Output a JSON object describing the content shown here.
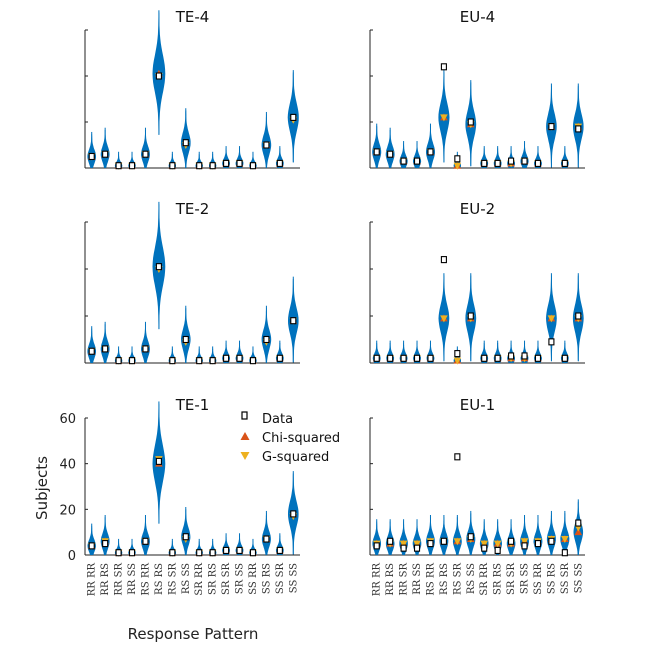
{
  "figure": {
    "xlabel": "Response Pattern",
    "ylabel": "Subjects",
    "legend": {
      "position": "top-left of TE-1 panel",
      "entries": [
        {
          "label": "Data",
          "marker": "square",
          "color": "#000000"
        },
        {
          "label": "Chi-squared",
          "marker": "triangle-up",
          "color": "#d95319"
        },
        {
          "label": "G-squared",
          "marker": "triangle-down",
          "color": "#edb120"
        }
      ]
    },
    "violin_color": "#0072bd"
  },
  "chart_data": [
    {
      "type": "violin",
      "title": "TE-4",
      "ylim": [
        0,
        60
      ],
      "yticks": [],
      "data": [
        5,
        6,
        1,
        1,
        6,
        40,
        1,
        11,
        1,
        1,
        2,
        2,
        1,
        10,
        2,
        22
      ],
      "chi": [
        5,
        6,
        1,
        1,
        6,
        41,
        1,
        11,
        1,
        1,
        2,
        2,
        1,
        10,
        2,
        22
      ],
      "g2": [
        5,
        6,
        1,
        1,
        6,
        40,
        1,
        10,
        1,
        1,
        2,
        2,
        1,
        10,
        2,
        21
      ]
    },
    {
      "type": "violin",
      "title": "EU-4",
      "ylim": [
        0,
        60
      ],
      "yticks": [],
      "data": [
        7,
        6,
        3,
        3,
        7,
        44,
        4,
        20,
        2,
        2,
        3,
        3,
        2,
        18,
        2,
        17
      ],
      "chi": [
        7,
        6,
        3,
        3,
        7,
        22,
        1,
        19,
        2,
        2,
        2,
        3,
        2,
        18,
        2,
        18
      ],
      "g2": [
        7,
        6,
        3,
        3,
        7,
        22,
        1,
        19,
        2,
        2,
        2,
        3,
        2,
        18,
        2,
        18
      ]
    },
    {
      "type": "violin",
      "title": "TE-2",
      "ylim": [
        0,
        60
      ],
      "yticks": [],
      "data": [
        5,
        6,
        1,
        1,
        6,
        41,
        1,
        10,
        1,
        1,
        2,
        2,
        1,
        10,
        2,
        18
      ],
      "chi": [
        5,
        6,
        1,
        1,
        6,
        41,
        1,
        10,
        1,
        1,
        2,
        2,
        1,
        10,
        2,
        18
      ],
      "g2": [
        5,
        6,
        1,
        1,
        6,
        40,
        1,
        9,
        1,
        1,
        2,
        2,
        1,
        9,
        2,
        18
      ]
    },
    {
      "type": "violin",
      "title": "EU-2",
      "ylim": [
        0,
        60
      ],
      "yticks": [],
      "data": [
        2,
        2,
        2,
        2,
        2,
        44,
        4,
        20,
        2,
        2,
        3,
        3,
        2,
        9,
        2,
        20
      ],
      "chi": [
        2,
        2,
        2,
        2,
        2,
        19,
        1,
        19,
        2,
        2,
        2,
        2,
        2,
        19,
        2,
        19
      ],
      "g2": [
        2,
        2,
        2,
        2,
        2,
        19,
        1,
        19,
        2,
        2,
        2,
        2,
        2,
        19,
        2,
        19
      ]
    },
    {
      "type": "violin",
      "title": "TE-1",
      "ylim": [
        0,
        60
      ],
      "yticks": [
        0,
        20,
        40,
        60
      ],
      "categories": [
        "RR RR",
        "RR RS",
        "RR SR",
        "RR SS",
        "RS RR",
        "RS RS",
        "RS SR",
        "RS SS",
        "SR RR",
        "SR RS",
        "SR SR",
        "SR SS",
        "SS RR",
        "SS RS",
        "SS SR",
        "SS SS"
      ],
      "data": [
        4,
        5,
        1,
        1,
        6,
        41,
        1,
        8,
        1,
        1,
        2,
        2,
        1,
        7,
        2,
        18
      ],
      "chi": [
        4,
        6,
        1,
        1,
        6,
        40,
        1,
        8,
        1,
        1,
        2,
        2,
        1,
        7,
        2,
        18
      ],
      "g2": [
        4,
        6,
        1,
        1,
        6,
        42,
        1,
        7,
        1,
        1,
        2,
        2,
        1,
        7,
        2,
        17
      ]
    },
    {
      "type": "violin",
      "title": "EU-1",
      "ylim": [
        0,
        60
      ],
      "yticks": [],
      "categories": [
        "RR RR",
        "RR RS",
        "RR SR",
        "RR SS",
        "RS RR",
        "RS RS",
        "RS SR",
        "RS SS",
        "SR RR",
        "SR RS",
        "SR SR",
        "SR SS",
        "SS RR",
        "SS RS",
        "SS SR",
        "SS SS"
      ],
      "data": [
        4,
        6,
        3,
        3,
        5,
        6,
        43,
        8,
        3,
        2,
        6,
        4,
        5,
        6,
        1,
        14
      ],
      "chi": [
        5,
        5,
        5,
        5,
        6,
        6,
        6,
        7,
        5,
        5,
        5,
        6,
        6,
        7,
        7,
        10
      ],
      "g2": [
        5,
        5,
        5,
        5,
        6,
        6,
        6,
        7,
        5,
        5,
        5,
        6,
        6,
        7,
        7,
        12
      ]
    }
  ]
}
